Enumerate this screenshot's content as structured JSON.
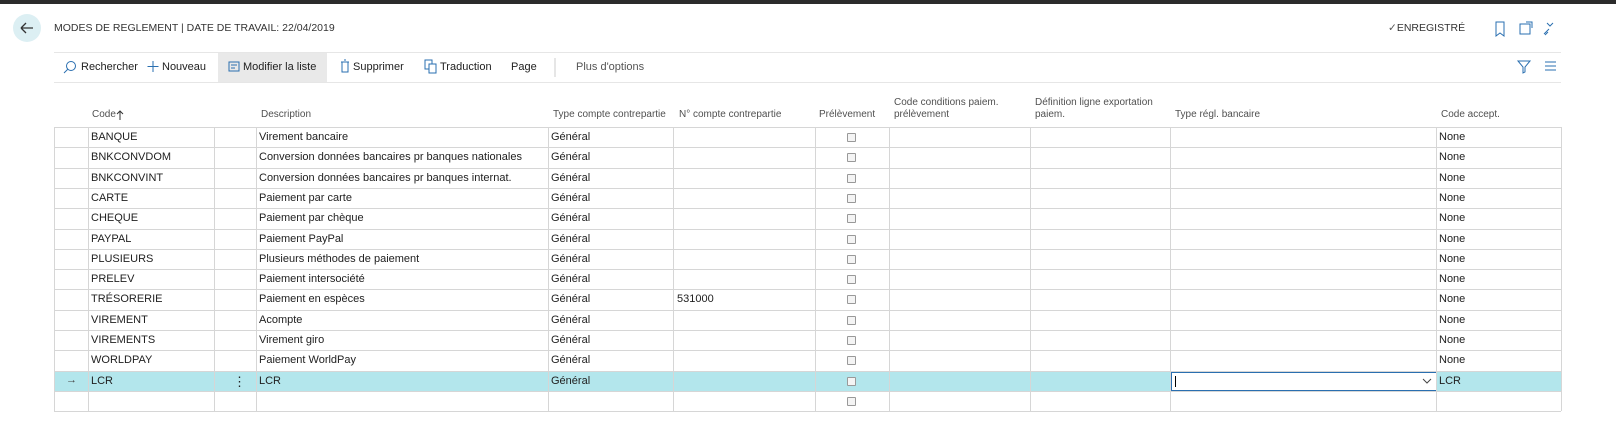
{
  "header": {
    "title": "MODES DE REGLEMENT | DATE DE TRAVAIL: 22/04/2019",
    "status": "ENREGISTRÉ"
  },
  "toolbar": {
    "actions": [
      "Rechercher",
      "Nouveau",
      "Modifier la liste",
      "Supprimer",
      "Traduction",
      "Page"
    ],
    "more": "Plus d'options"
  },
  "table": {
    "columns": [
      "Code",
      "Description",
      "Type compte contrepartie",
      "N° compte contrepartie",
      "Prélèvement",
      "Code conditions paiem. prélèvement",
      "Définition ligne exportation paiem.",
      "Type régl. bancaire",
      "Code accept."
    ],
    "rows": [
      {
        "code": "BANQUE",
        "description": "Virement bancaire",
        "type": "Général",
        "accept": "None"
      },
      {
        "code": "BNKCONVDOM",
        "description": "Conversion données bancaires pr banques nationales",
        "type": "Général",
        "accept": "None"
      },
      {
        "code": "BNKCONVINT",
        "description": "Conversion données bancaires pr banques internat.",
        "type": "Général",
        "accept": "None"
      },
      {
        "code": "CARTE",
        "description": "Paiement par carte",
        "type": "Général",
        "accept": "None"
      },
      {
        "code": "CHEQUE",
        "description": "Paiement par chèque",
        "type": "Général",
        "accept": "None"
      },
      {
        "code": "PAYPAL",
        "description": "Paiement PayPal",
        "type": "Général",
        "accept": "None"
      },
      {
        "code": "PLUSIEURS",
        "description": "Plusieurs méthodes de paiement",
        "type": "Général",
        "accept": "None"
      },
      {
        "code": "PRELEV",
        "description": "Paiement intersociété",
        "type": "Général",
        "accept": "None"
      },
      {
        "code": "TRÉSORERIE",
        "description": "Paiement en espèces",
        "type": "Général",
        "account": 531000,
        "accept": "None"
      },
      {
        "code": "VIREMENT",
        "description": "Acompte",
        "type": "Général",
        "accept": "None"
      },
      {
        "code": "VIREMENTS",
        "description": "Virement giro",
        "type": "Général",
        "accept": "None"
      },
      {
        "code": "WORLDPAY",
        "description": "Paiement WorldPay",
        "type": "Général",
        "accept": "None"
      },
      {
        "code": "LCR",
        "description": "LCR",
        "type": "Général",
        "accept": "LCR",
        "selected": true
      }
    ]
  }
}
